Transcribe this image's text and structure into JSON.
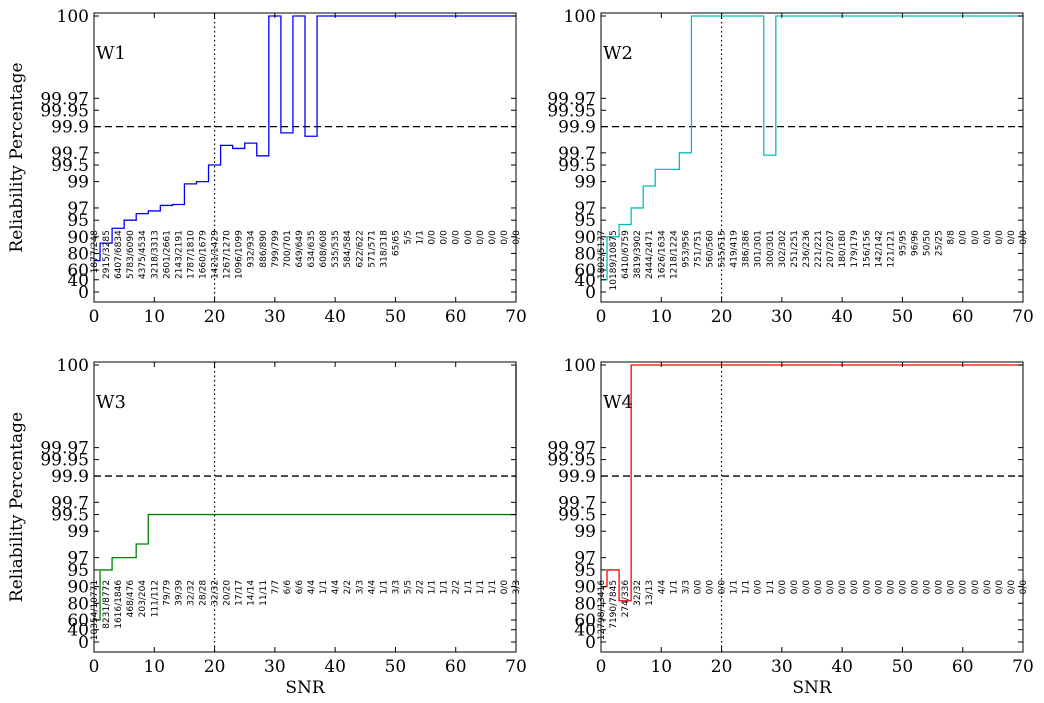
{
  "chart_data": [
    {
      "type": "line",
      "title": "W1",
      "xlabel": "",
      "ylabel": "Reliability Percentage",
      "color": "#0000ff",
      "xlim": [
        0,
        70
      ],
      "x_ticks": [
        0,
        10,
        20,
        30,
        40,
        50,
        60,
        70
      ],
      "y_ticks": [
        0,
        40,
        60,
        80,
        90,
        95,
        97,
        99,
        99.5,
        99.7,
        99.9,
        99.95,
        99.97,
        100
      ],
      "y_scale": "-log10(100.001 - y)",
      "reference_lines": [
        {
          "axis": "y",
          "value": 99.9,
          "style": "dashed"
        },
        {
          "axis": "x",
          "value": 20,
          "style": "dotted"
        }
      ],
      "step_x": [
        0,
        1,
        3,
        5,
        7,
        9,
        11,
        13,
        15,
        17,
        19,
        21,
        23,
        25,
        27,
        29,
        31,
        33,
        35,
        37,
        39,
        41,
        43,
        45,
        47,
        49,
        51,
        53,
        55,
        57,
        59,
        61,
        63,
        65,
        67,
        69,
        70
      ],
      "step_y": [
        73,
        87,
        93,
        95,
        96.2,
        96.6,
        97.3,
        97.4,
        98.9,
        99,
        99.5,
        99.78,
        99.75,
        99.8,
        99.66,
        100,
        99.87,
        100,
        99.85,
        100,
        100,
        100,
        100,
        100,
        100,
        100,
        100,
        100,
        100,
        100,
        100,
        100,
        100,
        100,
        100,
        100,
        100
      ],
      "count_x": [
        0,
        2,
        4,
        6,
        8,
        10,
        12,
        14,
        16,
        18,
        20,
        22,
        24,
        26,
        28,
        30,
        32,
        34,
        36,
        38,
        40,
        42,
        44,
        46,
        48,
        50,
        52,
        54,
        56,
        58,
        60,
        62,
        64,
        66,
        68,
        70
      ],
      "counts": [
        "1877/248",
        "2915/3285",
        "6407/6834",
        "5783/6090",
        "4375/4534",
        "3218/3313",
        "2601/2661",
        "2143/2191",
        "1787/1810",
        "1660/1679",
        "1421/1429",
        "1267/1270",
        "1096/1099",
        "932/934",
        "886/890",
        "799/799",
        "700/701",
        "649/649",
        "634/635",
        "608/608",
        "535/535",
        "584/584",
        "622/622",
        "571/571",
        "318/318",
        "65/65",
        "5/5",
        "1/1",
        "0/0",
        "0/0",
        "0/0",
        "0/0",
        "0/0",
        "0/0",
        "0/0",
        "0/0"
      ]
    },
    {
      "type": "line",
      "title": "W2",
      "xlabel": "",
      "ylabel": "",
      "color": "#00bfbf",
      "xlim": [
        0,
        70
      ],
      "x_ticks": [
        0,
        10,
        20,
        30,
        40,
        50,
        60,
        70
      ],
      "y_ticks": [
        0,
        40,
        60,
        80,
        90,
        95,
        97,
        99,
        99.5,
        99.7,
        99.9,
        99.95,
        99.97,
        100
      ],
      "y_scale": "-log10(100.001 - y)",
      "reference_lines": [
        {
          "axis": "y",
          "value": 99.9,
          "style": "dashed"
        },
        {
          "axis": "x",
          "value": 20,
          "style": "dotted"
        }
      ],
      "step_x": [
        0,
        1,
        3,
        5,
        7,
        9,
        11,
        13,
        15,
        17,
        19,
        21,
        23,
        25,
        27,
        29,
        31,
        33,
        70
      ],
      "step_y": [
        40,
        90,
        94,
        97,
        98.8,
        99.4,
        99.4,
        99.7,
        100,
        100,
        100,
        100,
        100,
        100,
        99.67,
        100,
        100,
        100,
        100
      ],
      "count_x": [
        0,
        2,
        4,
        6,
        8,
        10,
        12,
        14,
        16,
        18,
        20,
        22,
        24,
        26,
        28,
        30,
        32,
        34,
        36,
        38,
        40,
        42,
        44,
        46,
        48,
        50,
        52,
        54,
        56,
        58,
        60,
        62,
        64,
        66,
        68,
        70
      ],
      "counts": [
        "1802/5177",
        "10189/10875",
        "6410/6759",
        "3819/3902",
        "2444/2471",
        "1626/1634",
        "1218/1224",
        "953/956",
        "751/751",
        "560/560",
        "515/515",
        "419/419",
        "386/386",
        "301/301",
        "300/301",
        "302/302",
        "251/251",
        "236/236",
        "221/221",
        "207/207",
        "180/180",
        "179/179",
        "156/156",
        "142/142",
        "121/121",
        "95/95",
        "96/96",
        "50/50",
        "25/25",
        "8/8",
        "0/0",
        "0/0",
        "0/0",
        "0/0",
        "0/0",
        "0/0"
      ]
    },
    {
      "type": "line",
      "title": "W3",
      "xlabel": "SNR",
      "ylabel": "Reliability Percentage",
      "color": "#008000",
      "xlim": [
        0,
        70
      ],
      "x_ticks": [
        0,
        10,
        20,
        30,
        40,
        50,
        60,
        70
      ],
      "y_ticks": [
        0,
        40,
        60,
        80,
        90,
        95,
        97,
        99,
        99.5,
        99.7,
        99.9,
        99.95,
        99.97,
        100
      ],
      "y_scale": "-log10(100.001 - y)",
      "reference_lines": [
        {
          "axis": "y",
          "value": 99.9,
          "style": "dashed"
        },
        {
          "axis": "x",
          "value": 20,
          "style": "dotted"
        }
      ],
      "step_x": [
        0,
        1,
        3,
        5,
        7,
        9,
        70
      ],
      "step_y": [
        60,
        95,
        97,
        97,
        98.3,
        99.5,
        100
      ],
      "count_x": [
        0,
        2,
        4,
        6,
        8,
        10,
        12,
        14,
        16,
        18,
        20,
        22,
        24,
        26,
        28,
        30,
        32,
        34,
        36,
        38,
        40,
        42,
        44,
        46,
        48,
        50,
        52,
        54,
        56,
        58,
        60,
        62,
        64,
        66,
        68,
        70
      ],
      "counts": [
        "10354/10771",
        "8231/8772",
        "1616/1846",
        "468/476",
        "203/204",
        "111/112",
        "79/79",
        "39/39",
        "32/32",
        "28/28",
        "32/32",
        "20/20",
        "17/17",
        "14/14",
        "11/11",
        "7/7",
        "6/6",
        "6/6",
        "4/4",
        "1/1",
        "4/4",
        "2/2",
        "3/3",
        "4/4",
        "1/1",
        "3/3",
        "5/5",
        "2/2",
        "1/1",
        "1/1",
        "2/2",
        "1/1",
        "1/1",
        "1/1",
        "0/0",
        "3/3"
      ]
    },
    {
      "type": "line",
      "title": "W4",
      "xlabel": "SNR",
      "ylabel": "",
      "color": "#ff0000",
      "xlim": [
        0,
        70
      ],
      "x_ticks": [
        0,
        10,
        20,
        30,
        40,
        50,
        60,
        70
      ],
      "y_ticks": [
        0,
        40,
        60,
        80,
        90,
        95,
        97,
        99,
        99.5,
        99.7,
        99.9,
        99.95,
        99.97,
        100
      ],
      "y_scale": "-log10(100.001 - y)",
      "reference_lines": [
        {
          "axis": "y",
          "value": 99.9,
          "style": "dashed"
        },
        {
          "axis": "x",
          "value": 20,
          "style": "dotted"
        }
      ],
      "step_x": [
        0,
        1,
        3,
        5,
        70
      ],
      "step_y": [
        90,
        95,
        82,
        100,
        100
      ],
      "count_x": [
        0,
        2,
        4,
        6,
        8,
        10,
        12,
        14,
        16,
        18,
        20,
        22,
        24,
        26,
        28,
        30,
        32,
        34,
        36,
        38,
        40,
        42,
        44,
        46,
        48,
        50,
        52,
        54,
        56,
        58,
        60,
        62,
        64,
        66,
        68,
        70
      ],
      "counts": [
        "12798/13416",
        "7190/7845",
        "274/336",
        "32/32",
        "13/13",
        "4/4",
        "1/1",
        "3/3",
        "0/0",
        "0/0",
        "0/0",
        "1/1",
        "1/1",
        "0/0",
        "1/1",
        "0/0",
        "0/0",
        "0/0",
        "0/0",
        "0/0",
        "0/0",
        "0/0",
        "0/0",
        "0/0",
        "0/0",
        "0/0",
        "0/0",
        "0/0",
        "0/0",
        "0/0",
        "0/0",
        "0/0",
        "0/0",
        "0/0",
        "0/0",
        "0/0"
      ]
    }
  ]
}
